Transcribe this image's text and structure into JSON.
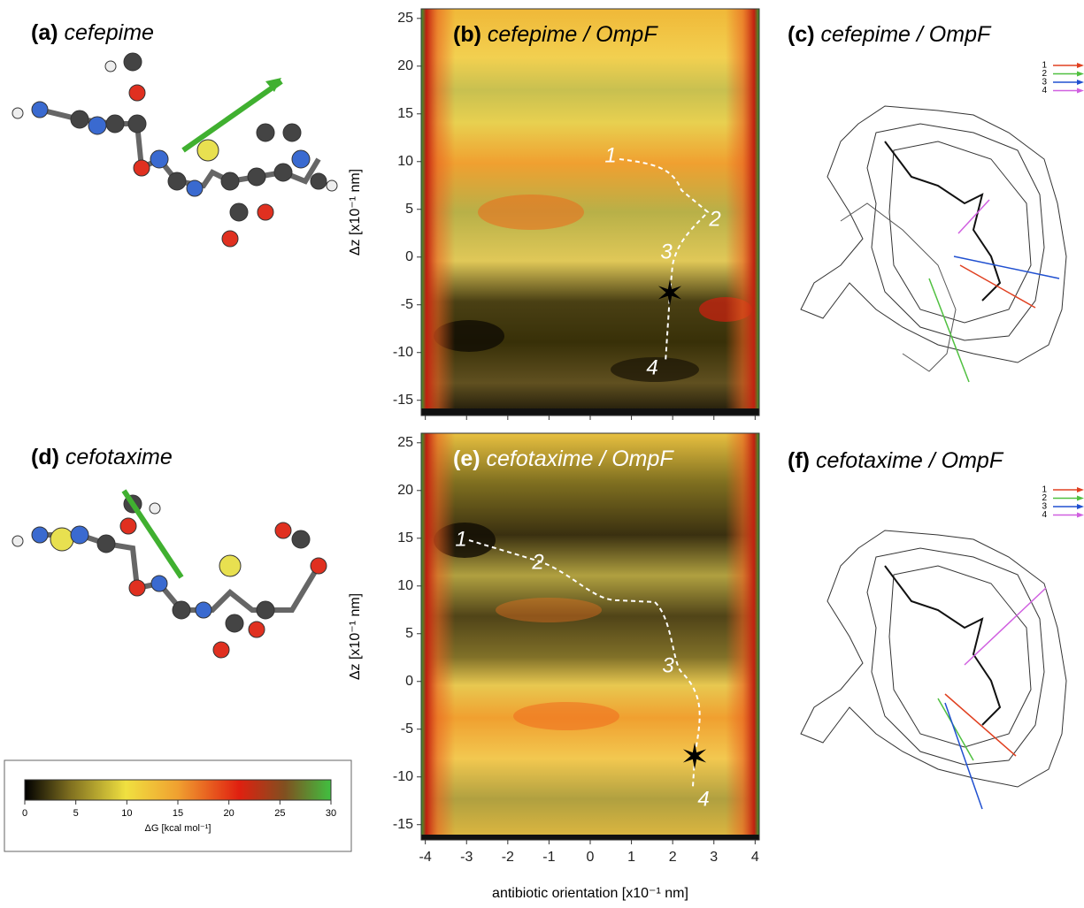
{
  "panels": [
    {
      "label": "(a)",
      "title": "cefepime"
    },
    {
      "label": "(b)",
      "title": "cefepime / OmpF"
    },
    {
      "label": "(c)",
      "title": "cefepime / OmpF"
    },
    {
      "label": "(d)",
      "title": "cefotaxime"
    },
    {
      "label": "(e)",
      "title": "cefotaxime / OmpF"
    },
    {
      "label": "(f)",
      "title": "cefotaxime / OmpF"
    }
  ],
  "maps": {
    "ylabel": "Δz [x10⁻¹ nm]",
    "xlabel": "antibiotic orientation [x10⁻¹ nm]",
    "xlim": [
      -4.1,
      4.1
    ],
    "xticks": [
      -4,
      -3,
      -2,
      -1,
      0,
      1,
      2,
      3,
      4
    ],
    "ylim": [
      -16.6,
      26
    ],
    "yticks": [
      -15,
      -10,
      -5,
      0,
      5,
      10,
      15,
      20,
      25
    ]
  },
  "paths": [
    [
      "1",
      "2",
      "3",
      "4"
    ],
    [
      "1",
      "2",
      "3",
      "4"
    ]
  ],
  "legend": [
    {
      "name": "1",
      "color": "#e04020"
    },
    {
      "name": "2",
      "color": "#50c040"
    },
    {
      "name": "3",
      "color": "#2050d0"
    },
    {
      "name": "4",
      "color": "#d060e0"
    }
  ],
  "colorbar": {
    "label": "ΔG [kcal mol⁻¹]",
    "lim": [
      0,
      30
    ],
    "ticks": [
      0,
      5,
      10,
      15,
      20,
      25,
      30
    ]
  }
}
